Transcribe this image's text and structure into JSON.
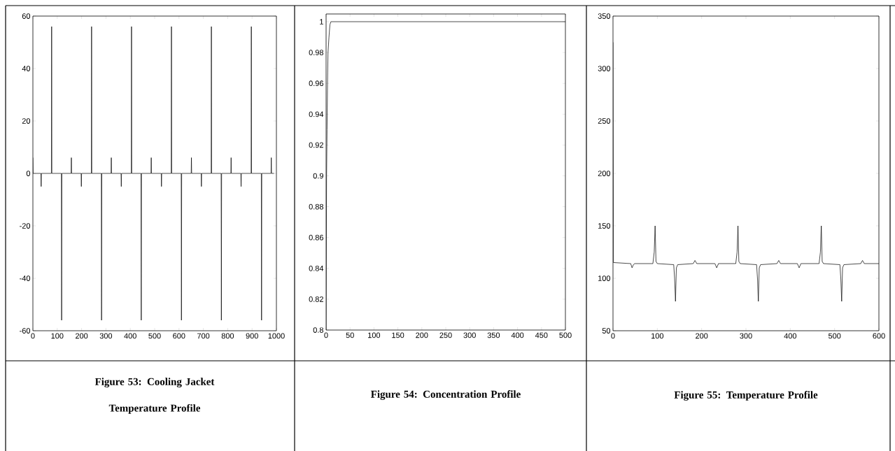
{
  "chart_data": [
    {
      "type": "line",
      "title": "Figure 53: Cooling Jacket Temperature Profile",
      "color": "#000000",
      "marker": "none",
      "grid": false,
      "x": [
        0,
        0,
        1,
        33,
        34,
        35,
        76,
        77,
        78,
        117,
        118,
        119,
        157,
        158,
        159,
        198,
        199,
        200,
        240,
        241,
        242,
        281,
        282,
        283,
        321,
        322,
        323,
        362,
        363,
        364,
        404,
        405,
        406,
        444,
        445,
        446,
        485,
        486,
        487,
        527,
        528,
        529,
        568,
        569,
        570,
        609,
        610,
        611,
        650,
        651,
        652,
        691,
        692,
        693,
        732,
        733,
        734,
        773,
        774,
        775,
        813,
        814,
        815,
        854,
        855,
        856,
        896,
        897,
        898,
        938,
        939,
        940,
        978,
        979,
        980,
        990
      ],
      "values": [
        6,
        6,
        0,
        0,
        -5,
        0,
        0,
        56,
        0,
        0,
        -56,
        0,
        0,
        6,
        0,
        0,
        -5,
        0,
        0,
        56,
        0,
        0,
        -56,
        0,
        0,
        6,
        0,
        0,
        -5,
        0,
        0,
        56,
        0,
        0,
        -56,
        0,
        0,
        6,
        0,
        0,
        -5,
        0,
        0,
        56,
        0,
        0,
        -56,
        0,
        0,
        6,
        0,
        0,
        -5,
        0,
        0,
        56,
        0,
        0,
        -56,
        0,
        0,
        6,
        0,
        0,
        -5,
        0,
        0,
        56,
        0,
        0,
        -56,
        0,
        0,
        6,
        0,
        0
      ],
      "xlim": [
        0,
        1000
      ],
      "ylim": [
        -60,
        60
      ],
      "xticks": [
        0,
        100,
        200,
        300,
        400,
        500,
        600,
        700,
        800,
        900,
        1000
      ],
      "yticks": [
        -60,
        -40,
        -20,
        0,
        20,
        40,
        60
      ]
    },
    {
      "type": "line",
      "title": "Figure 54: Concentration Profile",
      "color": "#000000",
      "marker": "none",
      "grid": false,
      "x": [
        0,
        1,
        2,
        3,
        4,
        6,
        8,
        10,
        500
      ],
      "values": [
        0.8,
        0.9,
        0.93,
        0.96,
        0.98,
        0.99,
        0.998,
        1,
        1
      ],
      "xlim": [
        0,
        500
      ],
      "ylim": [
        0.8,
        1.005
      ],
      "xticks": [
        0,
        50,
        100,
        150,
        200,
        250,
        300,
        350,
        400,
        450,
        500
      ],
      "yticks": [
        0.8,
        0.82,
        0.84,
        0.86,
        0.88,
        0.9,
        0.92,
        0.94,
        0.96,
        0.98,
        1
      ]
    },
    {
      "type": "line",
      "title": "Figure 55: Temperature Profile",
      "color": "#000000",
      "marker": "none",
      "grid": false,
      "x": [
        0,
        1,
        40,
        43,
        46,
        49,
        90,
        93,
        95,
        97,
        100,
        137,
        139,
        141,
        143,
        146,
        181,
        185,
        189,
        230,
        234,
        238,
        277,
        280,
        282,
        284,
        287,
        324,
        326,
        328,
        330,
        333,
        370,
        374,
        378,
        416,
        420,
        424,
        465,
        468,
        470,
        472,
        475,
        512,
        514,
        516,
        518,
        521,
        559,
        563,
        567,
        600
      ],
      "values": [
        325,
        115,
        114,
        110,
        113,
        114,
        114,
        125,
        150,
        116,
        114,
        113,
        100,
        78,
        110,
        113,
        114,
        117,
        114,
        114,
        110,
        114,
        114,
        125,
        150,
        116,
        114,
        113,
        100,
        78,
        110,
        113,
        114,
        117,
        114,
        114,
        110,
        114,
        114,
        125,
        150,
        116,
        114,
        113,
        100,
        78,
        110,
        113,
        114,
        117,
        114,
        114
      ],
      "xlim": [
        0,
        600
      ],
      "ylim": [
        50,
        350
      ],
      "xticks": [
        0,
        100,
        200,
        300,
        400,
        500,
        600
      ],
      "yticks": [
        50,
        100,
        150,
        200,
        250,
        300,
        350
      ]
    }
  ]
}
